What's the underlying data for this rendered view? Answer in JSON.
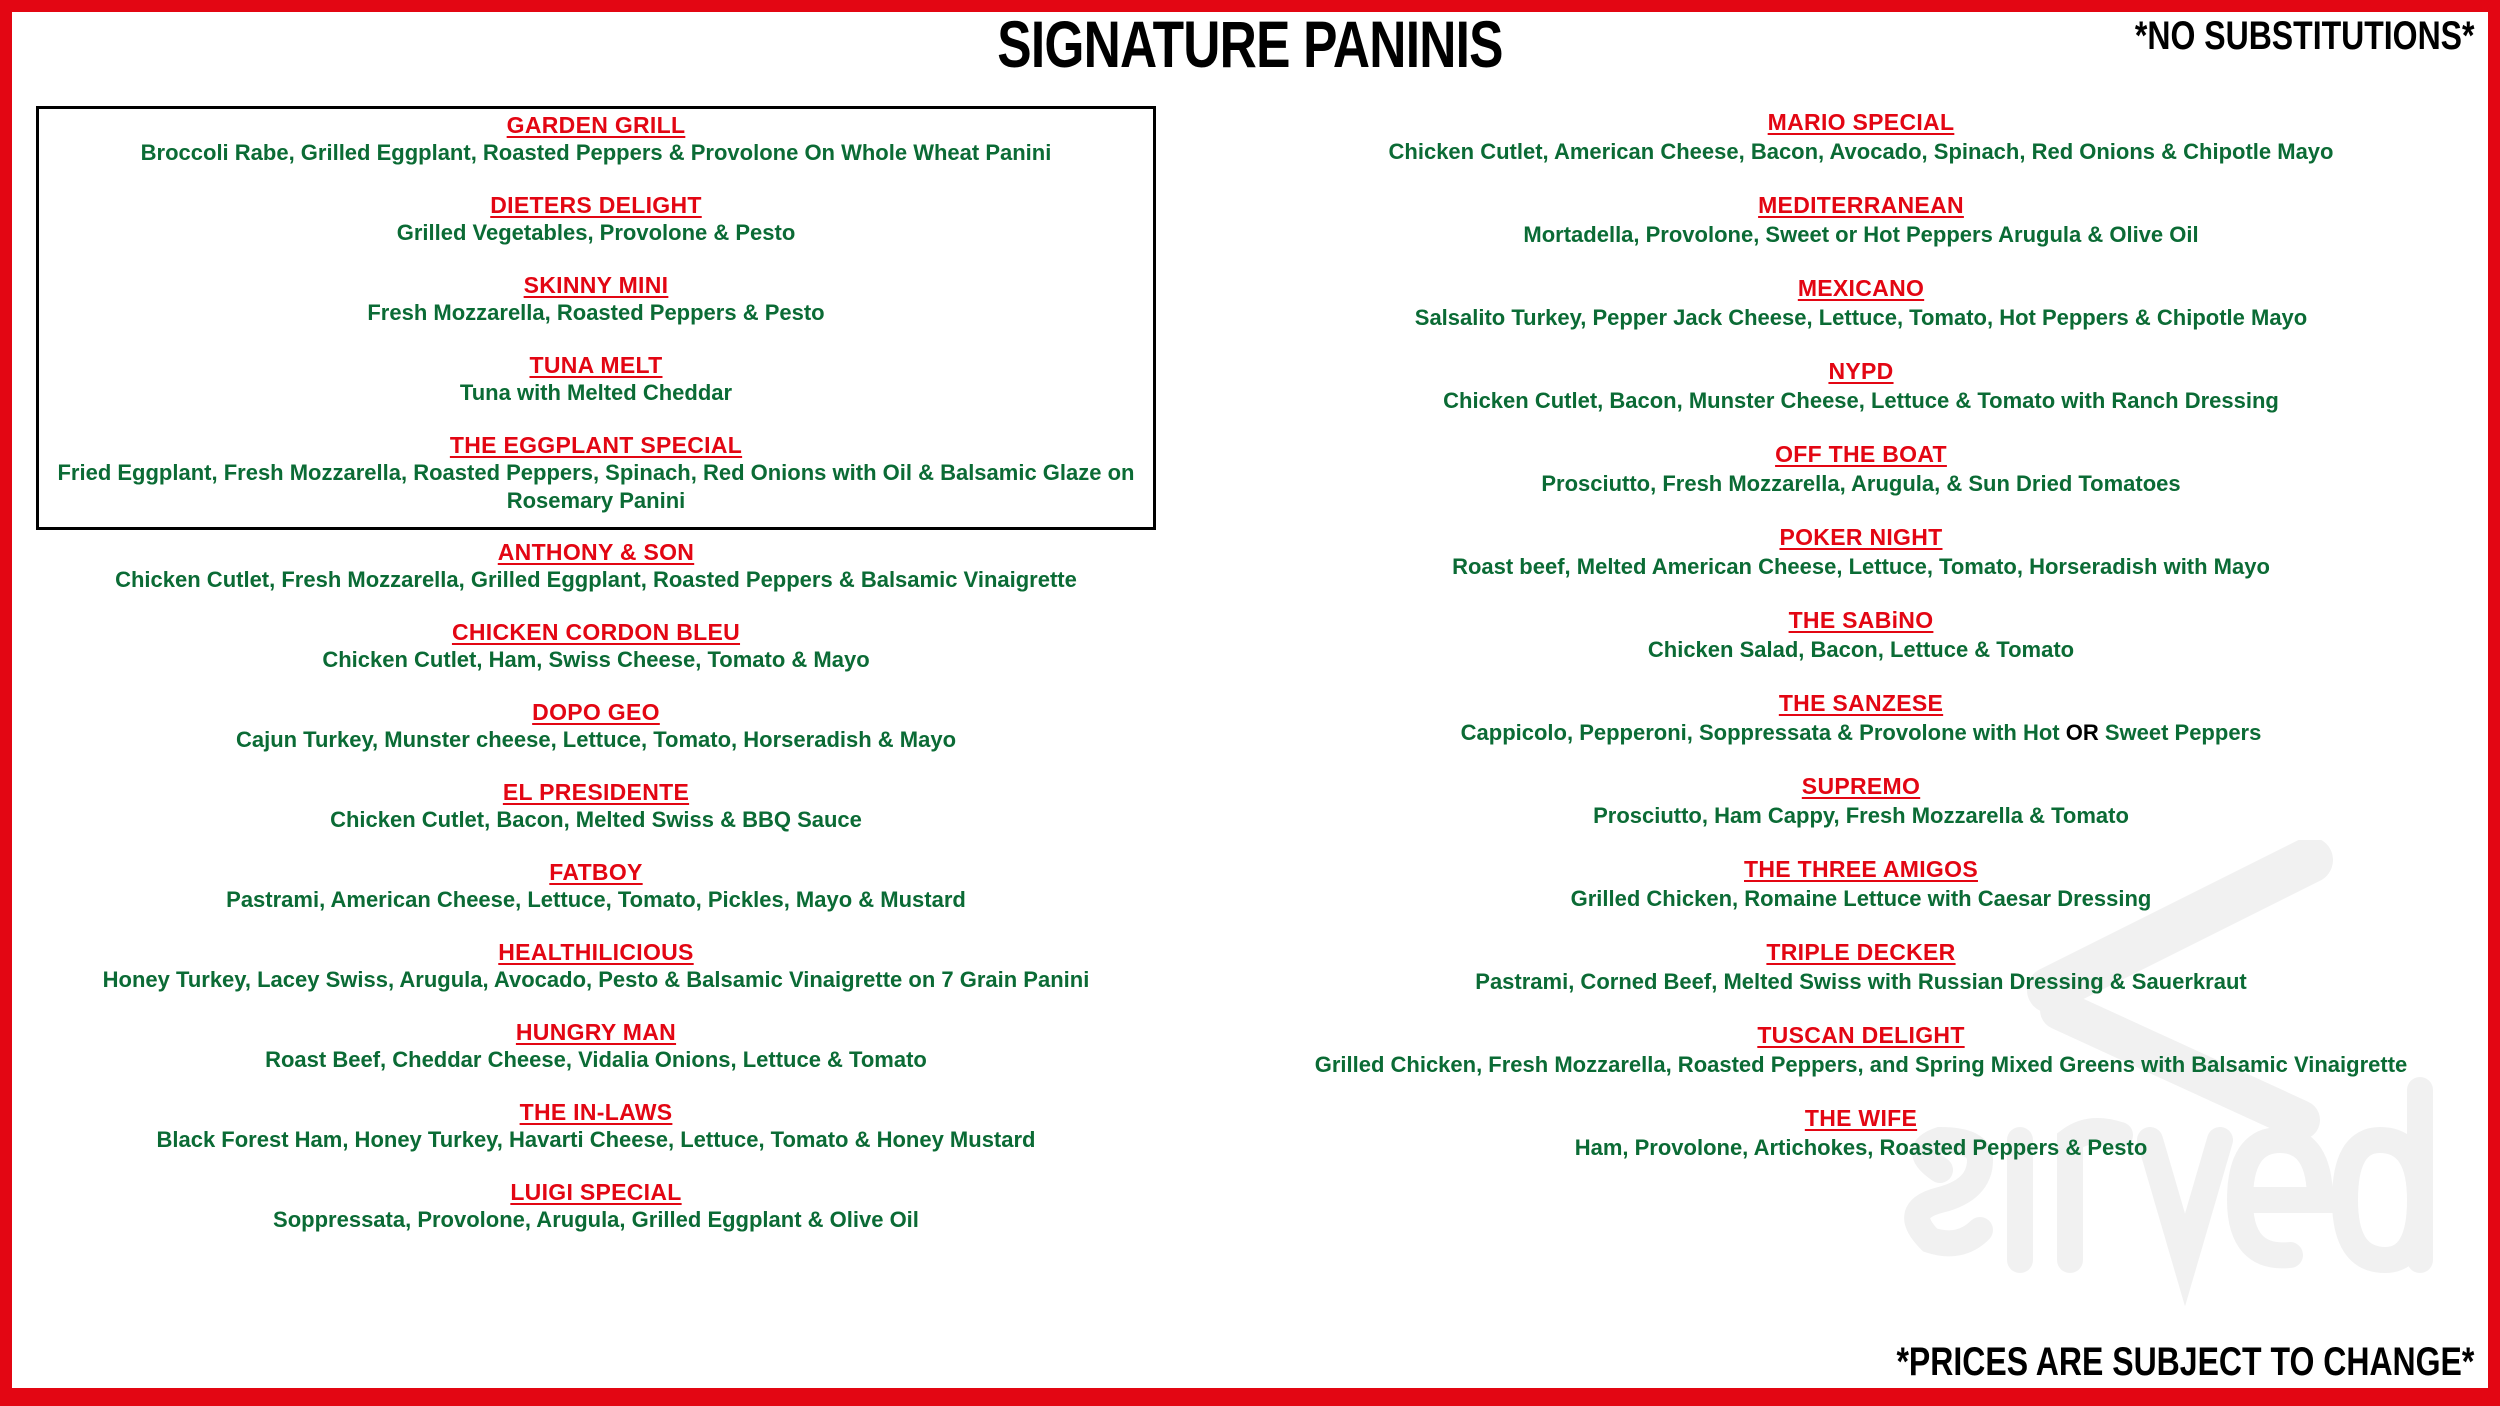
{
  "header": {
    "title": "SIGNATURE PANINIS",
    "notice": "*NO SUBSTITUTIONS*"
  },
  "footer": {
    "notice": "*PRICES ARE SUBJECT TO CHANGE*"
  },
  "watermark": {
    "text": "sirved"
  },
  "colors": {
    "border": "#e30613",
    "item_name": "#e30613",
    "item_desc": "#0b6b35",
    "text": "#000000"
  },
  "left_boxed": [
    {
      "name": "GARDEN GRILL",
      "desc": "Broccoli Rabe, Grilled Eggplant, Roasted Peppers & Provolone On Whole Wheat Panini"
    },
    {
      "name": "DIETERS DELIGHT",
      "desc": "Grilled Vegetables, Provolone & Pesto"
    },
    {
      "name": "SKINNY MINI",
      "desc": "Fresh Mozzarella, Roasted Peppers & Pesto"
    },
    {
      "name": "TUNA MELT",
      "desc": "Tuna with Melted Cheddar"
    },
    {
      "name": "THE EGGPLANT SPECIAL",
      "desc": "Fried Eggplant, Fresh Mozzarella, Roasted Peppers, Spinach, Red Onions with Oil & Balsamic Glaze on Rosemary Panini"
    }
  ],
  "left": [
    {
      "name": "ANTHONY & SON",
      "desc": "Chicken Cutlet, Fresh Mozzarella, Grilled Eggplant, Roasted Peppers & Balsamic Vinaigrette"
    },
    {
      "name": "CHICKEN CORDON BLEU",
      "desc": "Chicken Cutlet, Ham, Swiss Cheese, Tomato & Mayo"
    },
    {
      "name": "DOPO GEO",
      "desc": "Cajun Turkey, Munster cheese, Lettuce, Tomato, Horseradish & Mayo"
    },
    {
      "name": "EL PRESIDENTE",
      "desc": "Chicken Cutlet, Bacon, Melted Swiss & BBQ Sauce"
    },
    {
      "name": "FATBOY",
      "desc": "Pastrami, American Cheese, Lettuce, Tomato, Pickles, Mayo & Mustard"
    },
    {
      "name": "HEALTHILICIOUS",
      "desc": "Honey Turkey, Lacey Swiss, Arugula, Avocado, Pesto & Balsamic Vinaigrette on 7 Grain Panini"
    },
    {
      "name": "HUNGRY MAN",
      "desc": "Roast Beef, Cheddar Cheese, Vidalia Onions, Lettuce & Tomato"
    },
    {
      "name": "THE IN-LAWS",
      "desc": "Black Forest Ham, Honey Turkey, Havarti Cheese, Lettuce, Tomato & Honey Mustard"
    },
    {
      "name": "LUIGI SPECIAL",
      "desc": "Soppressata, Provolone, Arugula, Grilled Eggplant & Olive Oil"
    }
  ],
  "right": [
    {
      "name": "MARIO SPECIAL",
      "desc": "Chicken Cutlet, American Cheese, Bacon, Avocado, Spinach, Red Onions & Chipotle Mayo"
    },
    {
      "name": "MEDITERRANEAN",
      "desc": "Mortadella, Provolone, Sweet or Hot Peppers Arugula & Olive Oil"
    },
    {
      "name": "MEXICANO",
      "desc": "Salsalito Turkey, Pepper Jack Cheese, Lettuce, Tomato, Hot Peppers & Chipotle Mayo"
    },
    {
      "name": "NYPD",
      "desc": "Chicken Cutlet, Bacon, Munster Cheese, Lettuce & Tomato with Ranch Dressing"
    },
    {
      "name": "OFF THE BOAT",
      "desc": "Prosciutto, Fresh Mozzarella, Arugula, & Sun Dried Tomatoes"
    },
    {
      "name": "POKER NIGHT",
      "desc": "Roast beef, Melted American Cheese, Lettuce, Tomato, Horseradish with Mayo"
    },
    {
      "name": "THE SABiNO",
      "desc": "Chicken Salad, Bacon, Lettuce & Tomato"
    },
    {
      "name": "THE SANZESE",
      "desc_parts": [
        "Cappicolo, Pepperoni, Soppressata & Provolone with Hot ",
        "OR",
        " Sweet Peppers"
      ]
    },
    {
      "name": "SUPREMO",
      "desc": "Prosciutto, Ham Cappy, Fresh Mozzarella & Tomato"
    },
    {
      "name": "THE THREE AMIGOS",
      "desc": "Grilled Chicken, Romaine Lettuce with Caesar Dressing"
    },
    {
      "name": "TRIPLE DECKER",
      "desc": "Pastrami, Corned Beef, Melted Swiss with Russian Dressing & Sauerkraut"
    },
    {
      "name": "TUSCAN DELIGHT",
      "desc": "Grilled Chicken, Fresh Mozzarella, Roasted Peppers, and Spring Mixed Greens with Balsamic Vinaigrette"
    },
    {
      "name": "THE WIFE",
      "desc": "Ham, Provolone, Artichokes, Roasted Peppers & Pesto"
    }
  ]
}
